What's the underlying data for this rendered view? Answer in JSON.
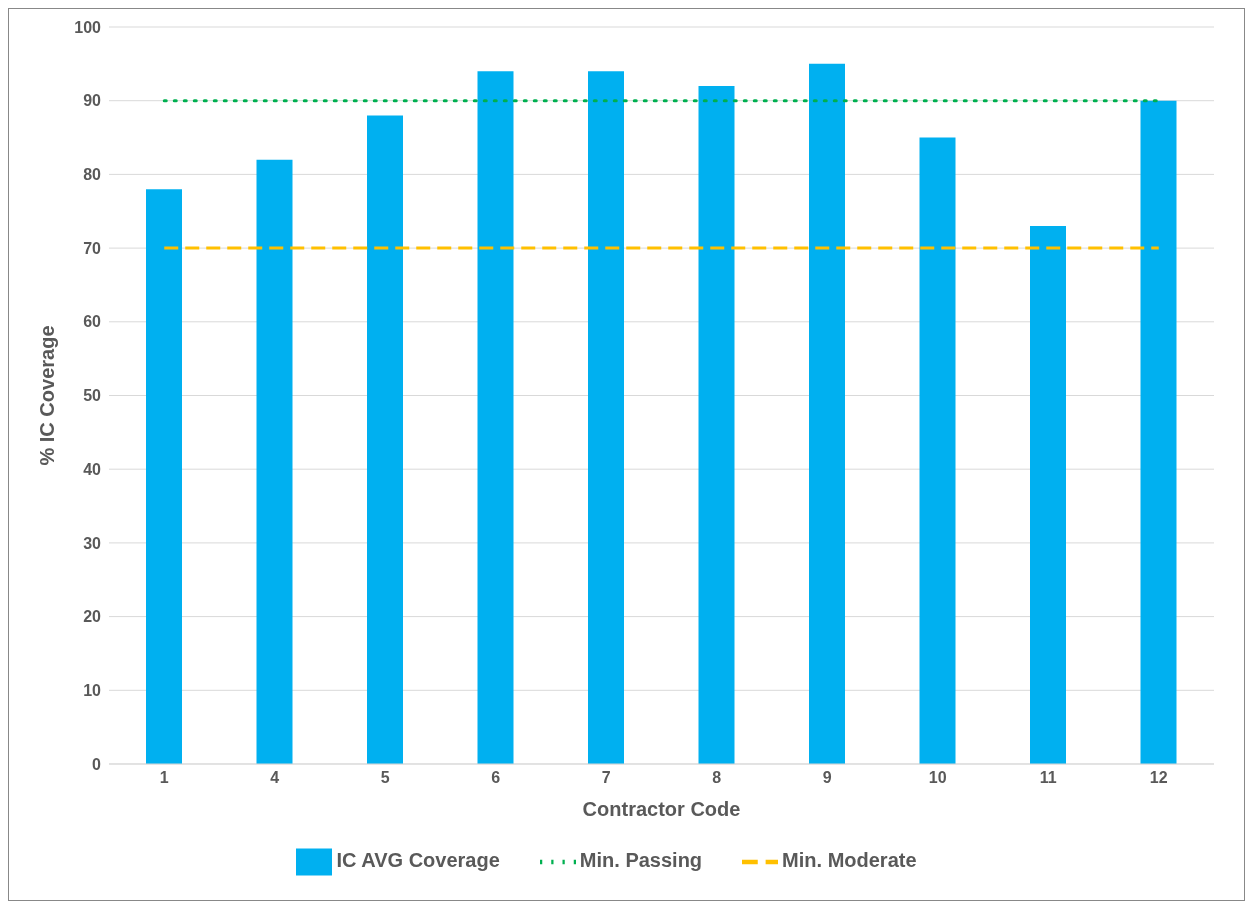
{
  "chart_data": {
    "type": "bar",
    "xlabel": "Contractor Code",
    "ylabel": "% IC Coverage",
    "categories": [
      "1",
      "4",
      "5",
      "6",
      "7",
      "8",
      "9",
      "10",
      "11",
      "12"
    ],
    "series": [
      {
        "name": "IC AVG Coverage",
        "color": "#00b0f0",
        "values": [
          78,
          82,
          88,
          94,
          94,
          92,
          95,
          85,
          73,
          90
        ]
      },
      {
        "name": "Min. Passing",
        "type": "line",
        "color": "#00b050",
        "line_style": "dotted",
        "marker": "none",
        "values": [
          90,
          90,
          90,
          90,
          90,
          90,
          90,
          90,
          90,
          90
        ]
      },
      {
        "name": "Min. Moderate",
        "type": "line",
        "color": "#ffc000",
        "line_style": "dashed",
        "marker": "none",
        "values": [
          70,
          70,
          70,
          70,
          70,
          70,
          70,
          70,
          70,
          70
        ]
      }
    ],
    "ylim": [
      0,
      100
    ],
    "yticks": [
      0,
      10,
      20,
      30,
      40,
      50,
      60,
      70,
      80,
      90,
      100
    ],
    "grid": "y",
    "legend": "bottom"
  }
}
